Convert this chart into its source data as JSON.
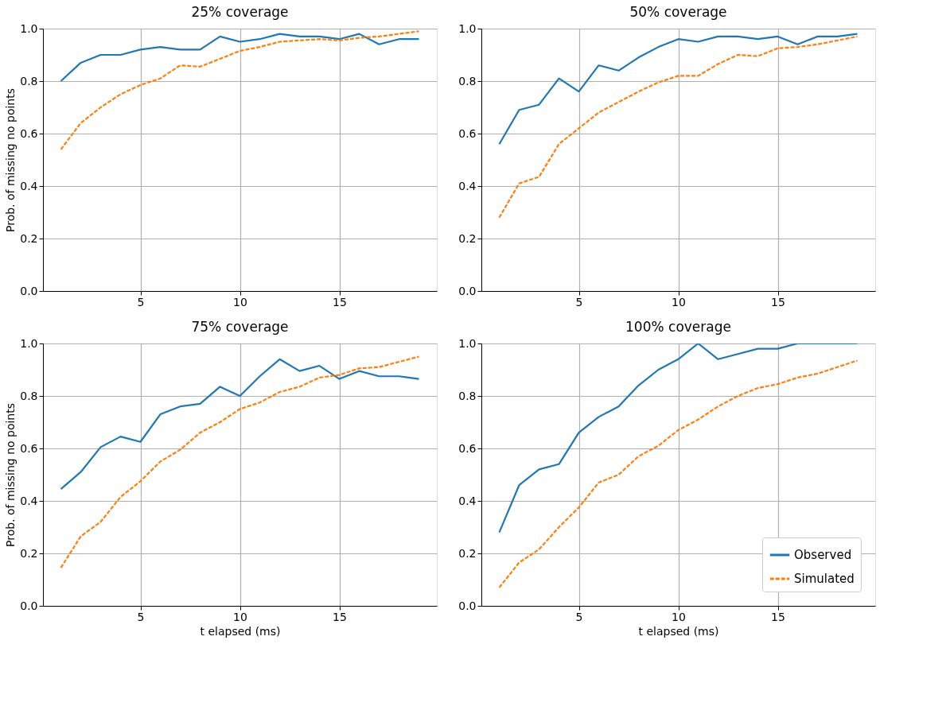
{
  "chart_data": [
    {
      "type": "line",
      "title": "25% coverage",
      "ylabel": "Prob. of missing no points",
      "xlim": [
        0.1,
        19.9
      ],
      "xticks": [
        5,
        10,
        15
      ],
      "ylim": [
        0,
        1
      ],
      "yticks": [
        {
          "value": 0,
          "label": "0.0"
        },
        {
          "value": 0.2,
          "label": "0.2"
        },
        {
          "value": 0.4,
          "label": "0.4"
        },
        {
          "value": 0.6,
          "label": "0.6"
        },
        {
          "value": 0.8,
          "label": "0.8"
        },
        {
          "value": 1,
          "label": "1.0"
        }
      ],
      "grid": true,
      "legend": false,
      "x": [
        1,
        2,
        3,
        4,
        5,
        6,
        7,
        8,
        9,
        10,
        11,
        12,
        13,
        14,
        15,
        16,
        17,
        18,
        19
      ],
      "series": [
        {
          "color": "#1f77b4",
          "line_style": "solid",
          "values": [
            0.8,
            0.87,
            0.9,
            0.9,
            0.92,
            0.93,
            0.92,
            0.92,
            0.97,
            0.95,
            0.96,
            0.98,
            0.97,
            0.97,
            0.96,
            0.98,
            0.94,
            0.96,
            0.96
          ]
        },
        {
          "color": "#ff7f0e",
          "line_style": "dashed",
          "values": [
            0.54,
            0.64,
            0.7,
            0.75,
            0.785,
            0.81,
            0.86,
            0.855,
            0.885,
            0.915,
            0.93,
            0.95,
            0.955,
            0.96,
            0.955,
            0.965,
            0.97,
            0.98,
            0.99
          ]
        }
      ]
    },
    {
      "type": "line",
      "title": "50% coverage",
      "xlim": [
        0.1,
        19.9
      ],
      "xticks": [
        5,
        10,
        15
      ],
      "ylim": [
        0,
        1
      ],
      "yticks": [
        {
          "value": 0,
          "label": "0.0"
        },
        {
          "value": 0.2,
          "label": "0.2"
        },
        {
          "value": 0.4,
          "label": "0.4"
        },
        {
          "value": 0.6,
          "label": "0.6"
        },
        {
          "value": 0.8,
          "label": "0.8"
        },
        {
          "value": 1,
          "label": "1.0"
        }
      ],
      "grid": true,
      "legend": false,
      "x": [
        1,
        2,
        3,
        4,
        5,
        6,
        7,
        8,
        9,
        10,
        11,
        12,
        13,
        14,
        15,
        16,
        17,
        18,
        19
      ],
      "series": [
        {
          "color": "#1f77b4",
          "line_style": "solid",
          "values": [
            0.56,
            0.69,
            0.71,
            0.81,
            0.76,
            0.86,
            0.84,
            0.89,
            0.93,
            0.96,
            0.95,
            0.97,
            0.97,
            0.96,
            0.97,
            0.94,
            0.97,
            0.97,
            0.98
          ]
        },
        {
          "color": "#ff7f0e",
          "line_style": "dashed",
          "values": [
            0.28,
            0.41,
            0.435,
            0.56,
            0.62,
            0.68,
            0.72,
            0.76,
            0.795,
            0.82,
            0.82,
            0.865,
            0.9,
            0.895,
            0.925,
            0.93,
            0.94,
            0.955,
            0.97
          ]
        }
      ]
    },
    {
      "type": "line",
      "title": "75% coverage",
      "xlabel": "t elapsed (ms)",
      "ylabel": "Prob. of missing no points",
      "xlim": [
        0.1,
        19.9
      ],
      "xticks": [
        5,
        10,
        15
      ],
      "ylim": [
        0,
        1
      ],
      "yticks": [
        {
          "value": 0,
          "label": "0.0"
        },
        {
          "value": 0.2,
          "label": "0.2"
        },
        {
          "value": 0.4,
          "label": "0.4"
        },
        {
          "value": 0.6,
          "label": "0.6"
        },
        {
          "value": 0.8,
          "label": "0.8"
        },
        {
          "value": 1,
          "label": "1.0"
        }
      ],
      "grid": true,
      "legend": false,
      "x": [
        1,
        2,
        3,
        4,
        5,
        6,
        7,
        8,
        9,
        10,
        11,
        12,
        13,
        14,
        15,
        16,
        17,
        18,
        19
      ],
      "series": [
        {
          "color": "#1f77b4",
          "line_style": "solid",
          "values": [
            0.445,
            0.51,
            0.605,
            0.645,
            0.625,
            0.73,
            0.76,
            0.77,
            0.835,
            0.8,
            0.875,
            0.94,
            0.895,
            0.915,
            0.865,
            0.895,
            0.875,
            0.875,
            0.865
          ]
        },
        {
          "color": "#ff7f0e",
          "line_style": "dashed",
          "values": [
            0.145,
            0.265,
            0.32,
            0.415,
            0.475,
            0.55,
            0.595,
            0.66,
            0.7,
            0.75,
            0.775,
            0.815,
            0.835,
            0.87,
            0.88,
            0.905,
            0.91,
            0.93,
            0.95
          ]
        }
      ]
    },
    {
      "type": "line",
      "title": "100% coverage",
      "xlabel": "t elapsed (ms)",
      "xlim": [
        0.1,
        19.9
      ],
      "xticks": [
        5,
        10,
        15
      ],
      "ylim": [
        0,
        1
      ],
      "yticks": [
        {
          "value": 0,
          "label": "0.0"
        },
        {
          "value": 0.2,
          "label": "0.2"
        },
        {
          "value": 0.4,
          "label": "0.4"
        },
        {
          "value": 0.6,
          "label": "0.6"
        },
        {
          "value": 0.8,
          "label": "0.8"
        },
        {
          "value": 1,
          "label": "1.0"
        }
      ],
      "grid": true,
      "legend": "bottom right",
      "x": [
        1,
        2,
        3,
        4,
        5,
        6,
        7,
        8,
        9,
        10,
        11,
        12,
        13,
        14,
        15,
        16,
        17,
        18,
        19
      ],
      "series": [
        {
          "name": "Observed",
          "color": "#1f77b4",
          "line_style": "solid",
          "values": [
            0.28,
            0.46,
            0.52,
            0.54,
            0.66,
            0.72,
            0.76,
            0.84,
            0.9,
            0.94,
            1.0,
            0.94,
            0.96,
            0.98,
            0.98,
            1.0,
            1.0,
            1.0,
            1.0
          ]
        },
        {
          "name": "Simulated",
          "color": "#ff7f0e",
          "line_style": "dashed",
          "values": [
            0.07,
            0.165,
            0.215,
            0.3,
            0.375,
            0.47,
            0.5,
            0.57,
            0.61,
            0.67,
            0.71,
            0.76,
            0.8,
            0.83,
            0.845,
            0.87,
            0.885,
            0.91,
            0.935
          ]
        }
      ]
    }
  ]
}
